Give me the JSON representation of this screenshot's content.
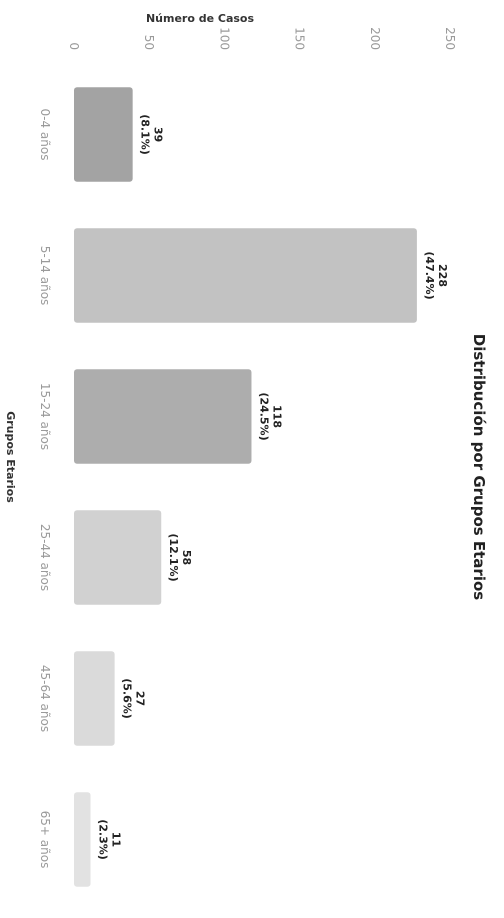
{
  "chart_data": {
    "type": "bar",
    "orientation": "vertical",
    "title": "Distribución por Grupos Etarios",
    "xlabel": "Grupos Etarios",
    "ylabel": "Número de Casos",
    "categories": [
      "0-4 años",
      "5-14 años",
      "15-24 años",
      "25-44 años",
      "45-64 años",
      "65+ años"
    ],
    "values": [
      39,
      228,
      118,
      58,
      27,
      11
    ],
    "data_labels": [
      "39\n(8.1%)",
      "228\n(47.4%)",
      "118\n(24.5%)",
      "58\n(12.1%)",
      "27\n(5.6%)",
      "11\n(2.3%)"
    ],
    "ylim": [
      0,
      250
    ],
    "yticks": [
      0,
      50,
      100,
      150,
      200,
      250
    ],
    "grid": false,
    "bar_colors": [
      "#a3a3a3",
      "#c2c2c2",
      "#adadad",
      "#d1d1d1",
      "#dadada",
      "#e2e2e2"
    ]
  }
}
